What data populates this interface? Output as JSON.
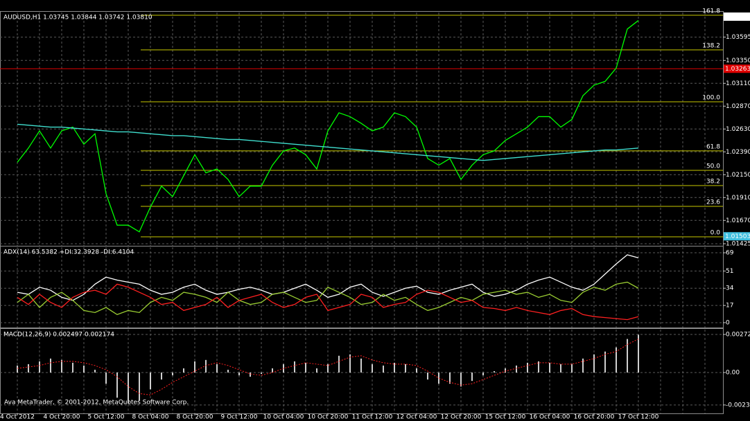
{
  "footer": "Ava MetaTrader, © 2001-2012, MetaQuotes Software Corp.",
  "chart_data": [
    {
      "type": "line",
      "title": "AUDUSD,H1  1.03745 1.03844 1.03742 1.03810",
      "categories": [
        "4 Oct 2012",
        null,
        null,
        null,
        "4 Oct 20:00",
        null,
        null,
        null,
        "5 Oct 12:00",
        null,
        null,
        null,
        "8 Oct 04:00",
        null,
        null,
        null,
        "8 Oct 20:00",
        null,
        null,
        null,
        "9 Oct 12:00",
        null,
        null,
        null,
        "10 Oct 04:00",
        null,
        null,
        null,
        "10 Oct 20:00",
        null,
        null,
        null,
        "11 Oct 12:00",
        null,
        null,
        null,
        "12 Oct 04:00",
        null,
        null,
        null,
        "12 Oct 20:00",
        null,
        null,
        null,
        "15 Oct 12:00",
        null,
        null,
        null,
        "16 Oct 04:00",
        null,
        null,
        null,
        "16 Oct 20:00",
        null,
        null,
        null,
        "17 Oct 12:00"
      ],
      "series": [
        {
          "style": "line",
          "color": "#00ff00",
          "values": [
            1.0228,
            1.0243,
            1.0261,
            1.0243,
            1.0261,
            1.0265,
            1.0247,
            1.0258,
            1.0195,
            1.0162,
            1.0162,
            1.0155,
            1.0181,
            1.0203,
            1.0192,
            1.0214,
            1.0236,
            1.0217,
            1.0221,
            1.021,
            1.0192,
            1.0203,
            1.0203,
            1.0225,
            1.024,
            1.0243,
            1.0236,
            1.0221,
            1.0261,
            1.028,
            1.0276,
            1.0269,
            1.0261,
            1.0265,
            1.028,
            1.0276,
            1.0265,
            1.0232,
            1.0225,
            1.0232,
            1.021,
            1.0225,
            1.0236,
            1.024,
            1.0251,
            1.0258,
            1.0265,
            1.0276,
            1.0276,
            1.0265,
            1.0273,
            1.0298,
            1.0309,
            1.0313,
            1.0327,
            1.0368,
            1.0377
          ]
        },
        {
          "style": "line",
          "color": "#40e0d0",
          "values": [
            1.0268,
            1.0267,
            1.0266,
            1.0265,
            1.0265,
            1.0264,
            1.0263,
            1.0262,
            1.0261,
            1.026,
            1.026,
            1.0259,
            1.0258,
            1.0257,
            1.0256,
            1.0256,
            1.0255,
            1.0254,
            1.0253,
            1.0252,
            1.0252,
            1.0251,
            1.025,
            1.0249,
            1.0248,
            1.0247,
            1.0246,
            1.0245,
            1.0244,
            1.0243,
            1.0242,
            1.0241,
            1.024,
            1.0239,
            1.0238,
            1.0237,
            1.0236,
            1.0235,
            1.0234,
            1.0233,
            1.0232,
            1.0231,
            1.023,
            1.0231,
            1.0232,
            1.0233,
            1.0234,
            1.0235,
            1.0236,
            1.0237,
            1.0238,
            1.0239,
            1.024,
            1.0241,
            1.0241,
            1.0242,
            1.0243
          ]
        }
      ],
      "ylim": [
        1.01403,
        1.03854
      ],
      "yticks": [
        1.03595,
        {
          "value": 1.0335,
          "label": "1.03350"
        },
        {
          "value": 1.0311,
          "label": "1.03110"
        },
        {
          "value": 1.0287,
          "label": "1.02870"
        },
        {
          "value": 1.0263,
          "label": "1.02630"
        },
        {
          "value": 1.0239,
          "label": "1.02390"
        },
        {
          "value": 1.0215,
          "label": "1.02150"
        },
        {
          "value": 1.0191,
          "label": "1.01910"
        },
        {
          "value": 1.0167,
          "label": "1.01670"
        },
        1.01425
      ],
      "grid": true,
      "levels": [
        {
          "label": "161.8",
          "value": 1.03825
        },
        {
          "label": "138.2",
          "value": 1.03461
        },
        {
          "label": "100.0",
          "value": 1.02916
        },
        {
          "label": "61.8",
          "value": 1.024
        },
        {
          "label": "50.0",
          "value": 1.02196
        },
        {
          "label": "38.2",
          "value": 1.02036
        },
        {
          "label": "23.6",
          "value": 1.01818
        },
        {
          "label": "0.0",
          "value": 1.01498
        }
      ],
      "level_color": "#c8c800",
      "hlines": [
        {
          "value": 1.03263,
          "color": "#e00000"
        }
      ],
      "price_labels": [
        {
          "value": 1.0381,
          "label": "1.03810",
          "color": "#ffffff"
        },
        {
          "value": 1.03263,
          "label": "1.03263",
          "color": "#e00000"
        },
        {
          "value": 1.01503,
          "label": "1.01503",
          "color": "#40c0e0"
        }
      ]
    },
    {
      "type": "line",
      "title": "ADX(14) 63.5382 +DI:32.3928 -DI:6.4104",
      "series": [
        {
          "style": "line",
          "color": "#ffffff",
          "values": [
            30,
            28,
            35,
            32,
            25,
            22,
            28,
            38,
            45,
            42,
            40,
            38,
            32,
            28,
            30,
            35,
            38,
            32,
            28,
            30,
            33,
            35,
            32,
            28,
            30,
            34,
            38,
            32,
            25,
            28,
            35,
            38,
            30,
            26,
            30,
            34,
            36,
            30,
            28,
            32,
            35,
            38,
            30,
            26,
            28,
            32,
            38,
            42,
            45,
            40,
            35,
            32,
            38,
            48,
            58,
            67,
            64
          ]
        },
        {
          "style": "line",
          "color": "#9acd32",
          "values": [
            20,
            28,
            15,
            25,
            30,
            22,
            12,
            10,
            15,
            8,
            12,
            10,
            20,
            25,
            22,
            30,
            28,
            25,
            20,
            30,
            22,
            18,
            20,
            28,
            30,
            25,
            20,
            22,
            35,
            30,
            25,
            18,
            20,
            28,
            22,
            25,
            18,
            12,
            15,
            20,
            25,
            22,
            28,
            30,
            32,
            28,
            30,
            25,
            28,
            22,
            20,
            30,
            35,
            32,
            38,
            40,
            34
          ]
        },
        {
          "style": "line",
          "color": "#ff2020",
          "values": [
            25,
            18,
            28,
            20,
            15,
            25,
            30,
            32,
            28,
            38,
            35,
            30,
            25,
            18,
            20,
            12,
            15,
            18,
            25,
            15,
            22,
            25,
            28,
            20,
            15,
            18,
            25,
            28,
            12,
            15,
            18,
            28,
            25,
            15,
            18,
            20,
            28,
            32,
            30,
            25,
            20,
            22,
            15,
            14,
            12,
            15,
            12,
            10,
            8,
            12,
            14,
            8,
            6,
            5,
            4,
            3,
            6
          ]
        }
      ],
      "ylim": [
        -4.8,
        74.5
      ],
      "yticks": [
        69,
        51,
        34,
        17,
        0
      ],
      "grid": true
    },
    {
      "type": "line",
      "title": "MACD(12,26,9) 0.002497 0.002174",
      "series": [
        {
          "style": "histogram",
          "color": "#d0d0d0",
          "values": [
            0.0005,
            0.0006,
            0.0008,
            0.001,
            0.0009,
            0.0007,
            0.0005,
            0.0002,
            -0.0008,
            -0.0018,
            -0.0022,
            -0.002,
            -0.0012,
            -0.0005,
            -0.0002,
            0.0003,
            0.0008,
            0.0009,
            0.0006,
            0.0002,
            -0.0002,
            -0.0003,
            -0.0001,
            0.0003,
            0.0006,
            0.0008,
            0.0007,
            0.0003,
            0.0006,
            0.0012,
            0.0013,
            0.001,
            0.0006,
            0.0005,
            0.0007,
            0.0006,
            0.0003,
            -0.0005,
            -0.0008,
            -0.0008,
            -0.001,
            -0.0006,
            -0.0002,
            0.0001,
            0.0003,
            0.0005,
            0.0007,
            0.0008,
            0.0007,
            0.0006,
            0.0006,
            0.001,
            0.0013,
            0.0015,
            0.0018,
            0.0024,
            0.0027
          ]
        },
        {
          "style": "dotted",
          "color": "#ff2020",
          "values": [
            0.0003,
            0.0004,
            0.0005,
            0.0007,
            0.0008,
            0.0008,
            0.0007,
            0.0005,
            0.0002,
            -0.0003,
            -0.001,
            -0.0015,
            -0.0016,
            -0.0012,
            -0.0007,
            -0.0003,
            0.0001,
            0.0005,
            0.0007,
            0.0005,
            0.0002,
            -0.0001,
            -0.0002,
            0.0,
            0.0003,
            0.0005,
            0.0007,
            0.0006,
            0.0005,
            0.0008,
            0.0011,
            0.0012,
            0.0009,
            0.0007,
            0.0006,
            0.0006,
            0.0005,
            0.0001,
            -0.0004,
            -0.0007,
            -0.0009,
            -0.0008,
            -0.0005,
            -0.0002,
            0.0001,
            0.0003,
            0.0005,
            0.0007,
            0.0007,
            0.0006,
            0.0006,
            0.0008,
            0.001,
            0.0013,
            0.0015,
            0.002,
            0.0024
          ]
        }
      ],
      "ylim": [
        -0.00292,
        0.00307
      ],
      "yticks": [
        0.002724,
        {
          "value": 0,
          "label": "0.00"
        },
        -0.002319
      ],
      "grid": true
    }
  ]
}
